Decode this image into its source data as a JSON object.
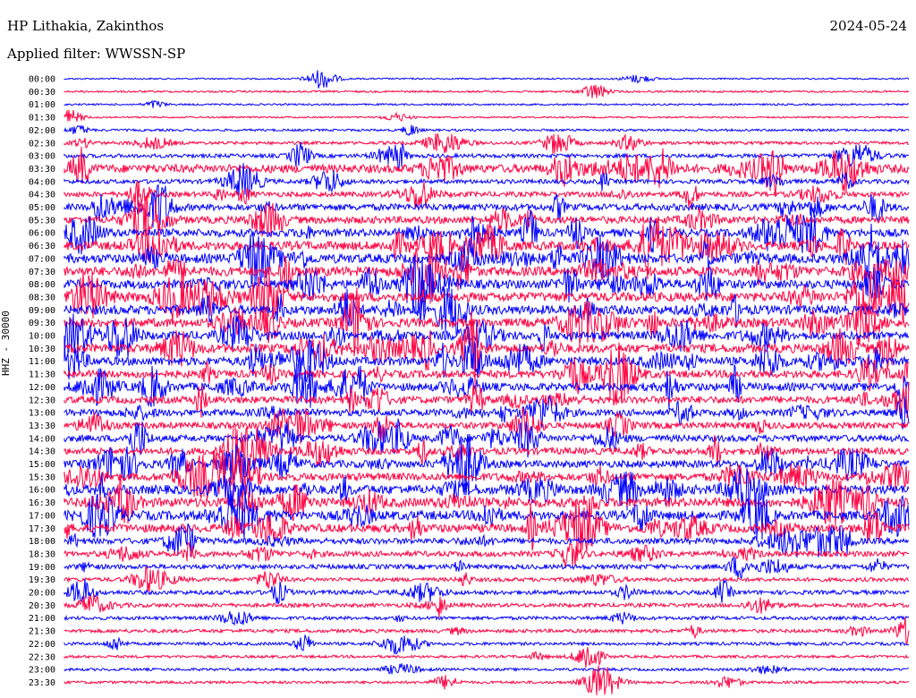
{
  "header": {
    "station": "HP Lithakia, Zakinthos",
    "date": "2024-05-24",
    "filter": "Applied filter: WWSSN-SP"
  },
  "chart_data": {
    "type": "line",
    "ylabel": "HHZ - 30000",
    "colors": [
      "#0000ff",
      "#ff0040"
    ],
    "time_labels": [
      "00:00",
      "00:30",
      "01:00",
      "01:30",
      "02:00",
      "02:30",
      "03:00",
      "03:30",
      "04:00",
      "04:30",
      "05:00",
      "05:30",
      "06:00",
      "06:30",
      "07:00",
      "07:30",
      "08:00",
      "08:30",
      "09:00",
      "09:30",
      "10:00",
      "10:30",
      "11:00",
      "11:30",
      "12:00",
      "12:30",
      "13:00",
      "13:30",
      "14:00",
      "14:30",
      "15:00",
      "15:30",
      "16:00",
      "16:30",
      "17:00",
      "17:30",
      "18:00",
      "18:30",
      "19:00",
      "19:30",
      "20:00",
      "20:30",
      "21:00",
      "21:30",
      "22:00",
      "22:30",
      "23:00",
      "23:30"
    ],
    "activity": [
      0.05,
      0.1,
      0.08,
      0.06,
      0.15,
      0.25,
      0.35,
      0.9,
      0.4,
      0.5,
      0.7,
      0.75,
      0.85,
      0.95,
      1.0,
      1.0,
      0.95,
      1.0,
      1.0,
      0.95,
      0.9,
      0.95,
      0.9,
      0.8,
      0.85,
      0.75,
      0.7,
      0.65,
      0.7,
      0.7,
      0.75,
      0.8,
      1.0,
      1.0,
      1.0,
      0.9,
      0.6,
      0.55,
      0.45,
      0.35,
      0.4,
      0.35,
      0.3,
      0.3,
      0.25,
      0.2,
      0.2,
      0.2
    ]
  }
}
